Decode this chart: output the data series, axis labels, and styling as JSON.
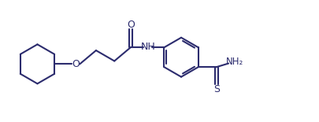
{
  "bg_color": "#ffffff",
  "line_color": "#2c2c6e",
  "line_width": 1.5,
  "font_size": 9,
  "fig_width": 4.06,
  "fig_height": 1.55,
  "dpi": 100,
  "xlim": [
    0,
    10.5
  ],
  "ylim": [
    0,
    4.0
  ]
}
